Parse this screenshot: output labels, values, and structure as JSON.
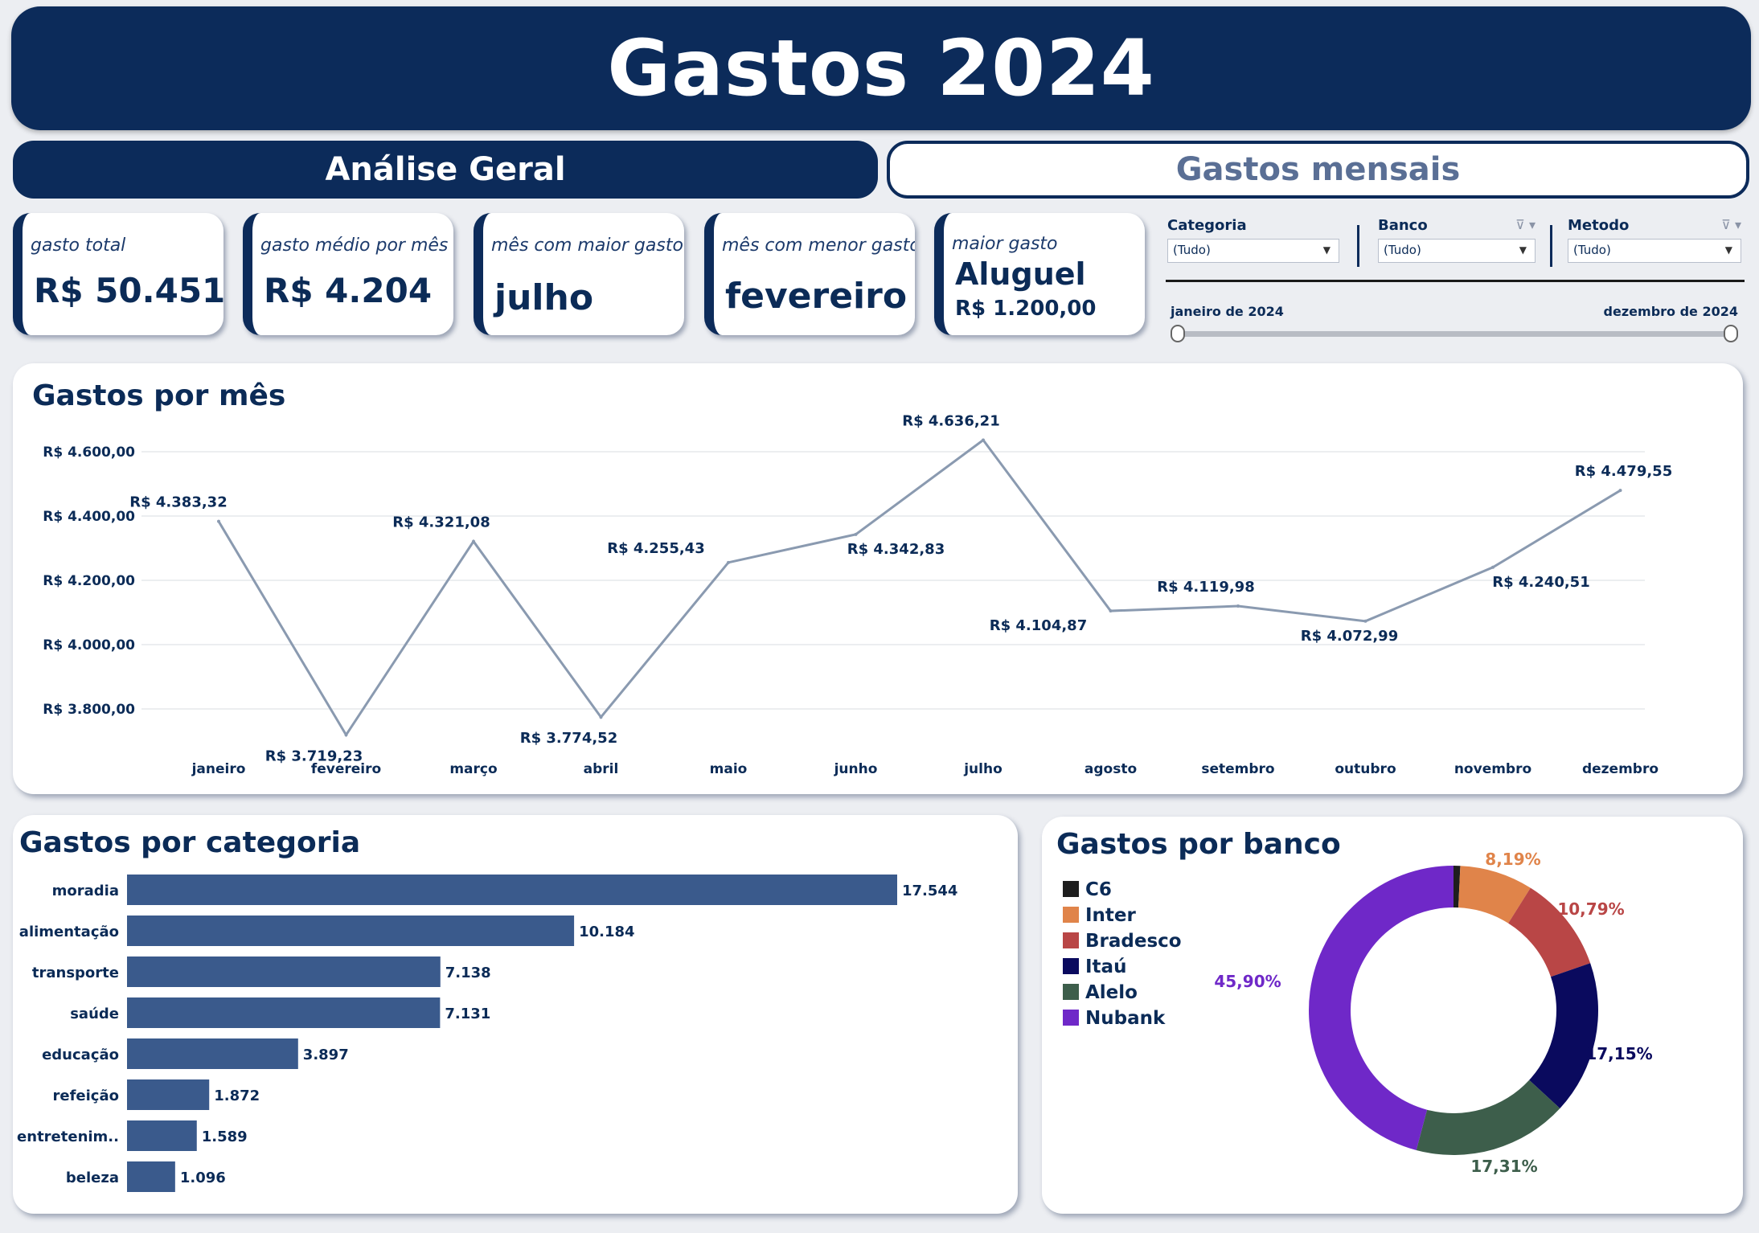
{
  "title": "Gastos 2024",
  "tabs": [
    {
      "label": "Análise Geral",
      "active": true
    },
    {
      "label": "Gastos mensais",
      "active": false
    }
  ],
  "kpis": [
    {
      "label": "gasto total",
      "value": "R$ 50.451"
    },
    {
      "label": "gasto médio por mês",
      "value": "R$ 4.204"
    },
    {
      "label": "mês com maior gasto",
      "value": "julho"
    },
    {
      "label": "mês com menor gasto",
      "value": "fevereiro"
    },
    {
      "label": "maior gasto",
      "value": "Aluguel",
      "value2": "R$ 1.200,00"
    }
  ],
  "filters": [
    {
      "label": "Categoria",
      "value": "(Tudo)"
    },
    {
      "label": "Banco",
      "value": "(Tudo)"
    },
    {
      "label": "Metodo",
      "value": "(Tudo)"
    }
  ],
  "date_range": {
    "start": "janeiro de 2024",
    "end": "dezembro de 2024"
  },
  "colors": {
    "navy": "#0c2b5a",
    "line": "#8a9ab0",
    "bar": "#3a5a8c"
  },
  "chart_data": [
    {
      "type": "line",
      "title": "Gastos por mês",
      "categories": [
        "janeiro",
        "fevereiro",
        "março",
        "abril",
        "maio",
        "junho",
        "julho",
        "agosto",
        "setembro",
        "outubro",
        "novembro",
        "dezembro"
      ],
      "values": [
        4383.32,
        3719.23,
        4321.08,
        3774.52,
        4255.43,
        4342.83,
        4636.21,
        4104.87,
        4119.98,
        4072.99,
        4240.51,
        4479.55
      ],
      "value_labels": [
        "R$ 4.383,32",
        "R$ 3.719,23",
        "R$ 4.321,08",
        "R$ 3.774,52",
        "R$ 4.255,43",
        "R$ 4.342,83",
        "R$ 4.636,21",
        "R$ 4.104,87",
        "R$ 4.119,98",
        "R$ 4.072,99",
        "R$ 4.240,51",
        "R$ 4.479,55"
      ],
      "yticks": [
        3800,
        4000,
        4200,
        4400,
        4600
      ],
      "ytick_labels": [
        "R$ 3.800,00",
        "R$ 4.000,00",
        "R$ 4.200,00",
        "R$ 4.400,00",
        "R$ 4.600,00"
      ],
      "ylim": [
        3700,
        4650
      ],
      "grid": true
    },
    {
      "type": "bar",
      "orientation": "horizontal",
      "title": "Gastos por categoria",
      "categories": [
        "moradia",
        "alimentação",
        "transporte",
        "saúde",
        "educação",
        "refeição",
        "entretenim..",
        "beleza"
      ],
      "values": [
        17544,
        10184,
        7138,
        7131,
        3897,
        1872,
        1589,
        1096
      ],
      "value_labels": [
        "17.544",
        "10.184",
        "7.138",
        "7.131",
        "3.897",
        "1.872",
        "1.589",
        "1.096"
      ],
      "xlim": [
        0,
        21000
      ]
    },
    {
      "type": "pie",
      "donut": true,
      "title": "Gastos por banco",
      "legend": "left",
      "series": [
        {
          "name": "C6",
          "value": 0.75,
          "color": "#1e1e1e"
        },
        {
          "name": "Inter",
          "value": 8.19,
          "label": "8,19%",
          "color": "#e0844a"
        },
        {
          "name": "Bradesco",
          "value": 10.79,
          "label": "10,79%",
          "color": "#b94646"
        },
        {
          "name": "Itaú",
          "value": 17.15,
          "label": "17,15%",
          "color": "#0a0a5e"
        },
        {
          "name": "Alelo",
          "value": 17.31,
          "label": "17,31%",
          "color": "#3d5e4b"
        },
        {
          "name": "Nubank",
          "value": 45.9,
          "label": "45,90%",
          "color": "#6f28c8"
        }
      ]
    }
  ]
}
